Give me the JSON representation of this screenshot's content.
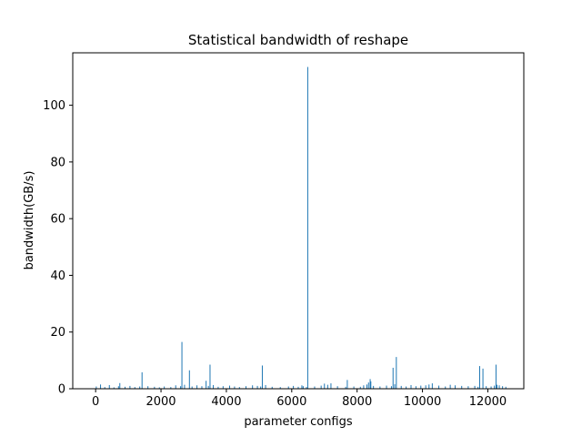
{
  "chart_data": {
    "type": "bar",
    "title": "Statistical bandwidth of reshape",
    "xlabel": "parameter configs",
    "ylabel": "bandwidth(GB/s)",
    "xlim": [
      -700,
      13100
    ],
    "ylim": [
      0,
      118.5
    ],
    "x_ticks": [
      0,
      2000,
      4000,
      6000,
      8000,
      10000,
      12000
    ],
    "y_ticks": [
      0,
      20,
      40,
      60,
      80,
      100
    ],
    "grid": false,
    "bar_color": "#1f77b4",
    "x": [
      20,
      150,
      280,
      420,
      560,
      700,
      740,
      900,
      1050,
      1200,
      1350,
      1420,
      1600,
      1800,
      1950,
      2100,
      2300,
      2450,
      2600,
      2640,
      2720,
      2870,
      2950,
      3100,
      3250,
      3380,
      3450,
      3500,
      3600,
      3750,
      3900,
      4100,
      4250,
      4400,
      4600,
      4800,
      4950,
      5050,
      5100,
      5200,
      5400,
      5650,
      5900,
      6050,
      6200,
      6310,
      6350,
      6450,
      6490,
      6700,
      6900,
      7000,
      7100,
      7200,
      7400,
      7650,
      7700,
      7900,
      8100,
      8200,
      8300,
      8350,
      8400,
      8420,
      8500,
      8700,
      8900,
      9050,
      9100,
      9150,
      9200,
      9350,
      9500,
      9650,
      9800,
      9950,
      10100,
      10200,
      10300,
      10500,
      10700,
      10850,
      11000,
      11200,
      11400,
      11600,
      11700,
      11750,
      11850,
      11950,
      12100,
      12200,
      12250,
      12280,
      12350,
      12450,
      12550
    ],
    "values": [
      0.8,
      1.5,
      0.6,
      1.3,
      0.5,
      0.9,
      2.0,
      0.7,
      1.0,
      0.6,
      0.8,
      5.8,
      0.9,
      0.7,
      0.5,
      0.8,
      0.6,
      1.2,
      0.9,
      16.5,
      1.4,
      6.5,
      0.8,
      1.2,
      0.9,
      2.8,
      1.0,
      8.5,
      1.3,
      0.7,
      0.9,
      1.1,
      0.8,
      0.6,
      0.9,
      1.2,
      1.0,
      0.8,
      8.2,
      1.3,
      0.7,
      0.6,
      0.8,
      1.0,
      0.7,
      1.2,
      0.9,
      0.6,
      113.5,
      0.8,
      1.1,
      1.8,
      1.4,
      1.9,
      0.9,
      0.7,
      3.1,
      0.8,
      0.7,
      1.2,
      1.5,
      2.2,
      3.4,
      2.6,
      1.0,
      0.8,
      1.1,
      0.9,
      7.4,
      1.6,
      11.2,
      1.0,
      0.8,
      1.3,
      0.9,
      1.1,
      1.2,
      1.5,
      1.9,
      1.1,
      0.8,
      1.4,
      1.2,
      1.0,
      0.9,
      1.0,
      0.7,
      8.0,
      7.1,
      0.9,
      0.8,
      1.1,
      8.5,
      1.4,
      1.2,
      0.9,
      0.7
    ]
  }
}
